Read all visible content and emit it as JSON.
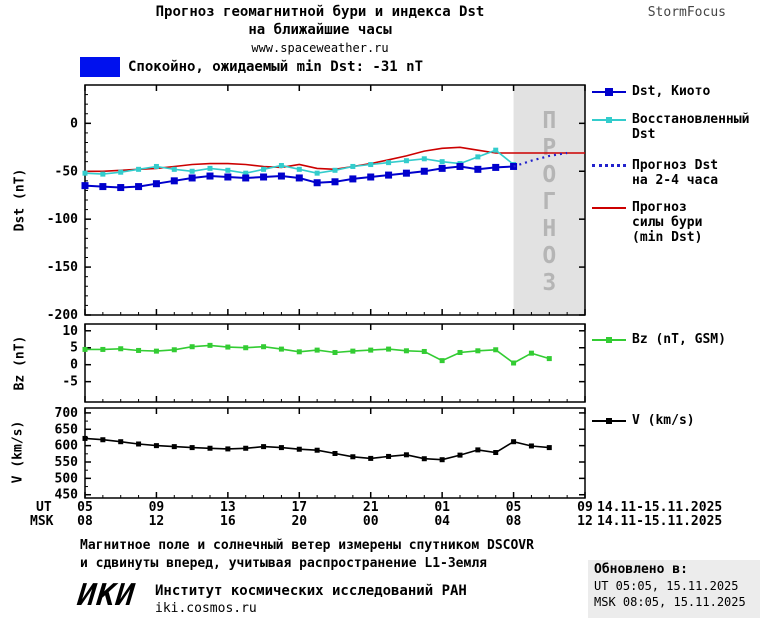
{
  "header": {
    "title_line1": "Прогноз геомагнитной бури и индекса Dst",
    "title_line2": "на ближайшие часы",
    "site": "www.spaceweather.ru",
    "brand": "StormFocus"
  },
  "status": {
    "label": "Спокойно, ожидаемый min Dst: -31 nT",
    "box_color": "#0011ee"
  },
  "axis_labels": {
    "dst": "Dst (nT)",
    "bz": "Bz (nT)",
    "v": "V (km/s)"
  },
  "chart_data": [
    {
      "type": "line",
      "name": "dst",
      "ylabel": "Dst (nT)",
      "xlim": [
        0,
        28
      ],
      "ylim": [
        -200,
        40
      ],
      "yticks": [
        0,
        -50,
        -100,
        -150,
        -200
      ],
      "xticks": [
        0,
        4,
        8,
        12,
        16,
        20,
        24,
        28
      ],
      "forecast_region": [
        24,
        28
      ],
      "forecast_text": "ПРОГНОЗ",
      "series": [
        {
          "name": "Прогноз силы бури (min Dst)",
          "color": "#cc0000",
          "width": 1.6,
          "x_start": 0,
          "values": [
            -50,
            -50,
            -49,
            -48,
            -47,
            -45,
            -43,
            -42,
            -42,
            -43,
            -45,
            -46,
            -43,
            -47,
            -48,
            -45,
            -42,
            -38,
            -34,
            -29,
            -26,
            -25,
            -28,
            -31,
            -31,
            -31,
            -31,
            -31,
            -31
          ]
        },
        {
          "name": "Восстановленный Dst",
          "color": "#33cccc",
          "width": 1.6,
          "marker": 5,
          "x_start": 0,
          "values": [
            -52,
            -53,
            -51,
            -48,
            -45,
            -48,
            -50,
            -47,
            -49,
            -52,
            -48,
            -44,
            -48,
            -52,
            -49,
            -45,
            -43,
            -41,
            -39,
            -37,
            -40,
            -42,
            -35,
            -28,
            -43
          ]
        },
        {
          "name": "Dst, Киото",
          "color": "#0000cc",
          "width": 2,
          "marker": 7,
          "x_start": 0,
          "values": [
            -65,
            -66,
            -67,
            -66,
            -63,
            -60,
            -57,
            -55,
            -56,
            -57,
            -56,
            -55,
            -57,
            -62,
            -61,
            -58,
            -56,
            -54,
            -52,
            -50,
            -47,
            -45,
            -48,
            -46,
            -45
          ]
        },
        {
          "name": "Прогноз Dst на 2-4 часа",
          "color": "#2222cc",
          "width": 2.2,
          "dash": "2 4",
          "x_start": 24,
          "values": [
            -45,
            -39,
            -34,
            -31
          ]
        }
      ]
    },
    {
      "type": "line",
      "name": "bz",
      "ylabel": "Bz (nT)",
      "xlim": [
        0,
        28
      ],
      "ylim": [
        -11,
        12
      ],
      "yticks": [
        10,
        5,
        0,
        -5
      ],
      "xticks": [
        0,
        4,
        8,
        12,
        16,
        20,
        24,
        28
      ],
      "series": [
        {
          "name": "Bz (nT, GSM)",
          "color": "#33cc33",
          "width": 1.6,
          "marker": 5,
          "x_start": 0,
          "values": [
            4.5,
            4.5,
            4.7,
            4.2,
            4.0,
            4.4,
            5.3,
            5.7,
            5.2,
            5.0,
            5.3,
            4.6,
            3.8,
            4.3,
            3.6,
            4.0,
            4.3,
            4.6,
            4.1,
            3.9,
            1.2,
            3.6,
            4.1,
            4.4,
            0.5,
            3.4,
            1.8
          ]
        }
      ]
    },
    {
      "type": "line",
      "name": "v",
      "ylabel": "V (km/s)",
      "xlim": [
        0,
        28
      ],
      "ylim": [
        440,
        715
      ],
      "yticks": [
        700,
        650,
        600,
        550,
        500,
        450
      ],
      "xticks": [
        0,
        4,
        8,
        12,
        16,
        20,
        24,
        28
      ],
      "series": [
        {
          "name": "V (km/s)",
          "color": "#000000",
          "width": 1.6,
          "marker": 5,
          "x_start": 0,
          "values": [
            622,
            618,
            612,
            605,
            600,
            597,
            594,
            592,
            590,
            592,
            597,
            594,
            589,
            586,
            576,
            566,
            561,
            567,
            572,
            560,
            557,
            571,
            587,
            579,
            612,
            599,
            594
          ]
        }
      ]
    }
  ],
  "xaxis": {
    "ut_label": "UT",
    "msk_label": "MSK",
    "ut_ticks": [
      "05",
      "09",
      "13",
      "17",
      "21",
      "01",
      "05",
      "09"
    ],
    "msk_ticks": [
      "08",
      "12",
      "16",
      "20",
      "00",
      "04",
      "08",
      "12"
    ],
    "ut_date": "14.11-15.11.2025",
    "msk_date": "14.11-15.11.2025"
  },
  "legend": {
    "kyoto": {
      "label": "Dst, Киото",
      "color": "#0000cc"
    },
    "restored": {
      "label": "Восстановленный\nDst",
      "color": "#33cccc"
    },
    "forecast_dst": {
      "label": "Прогноз Dst\nна 2-4 часа",
      "color": "#2222cc"
    },
    "forecast_storm": {
      "label": "Прогноз\nсилы бури\n(min Dst)",
      "color": "#cc0000"
    },
    "bz": {
      "label": "Bz (nT, GSM)",
      "color": "#33cc33"
    },
    "v": {
      "label": "V (km/s)",
      "color": "#000000"
    }
  },
  "footer": {
    "note": "Магнитное поле и солнечный ветер измерены спутником DSCOVR\nи сдвинуты вперед, учитывая распространение L1-Земля",
    "updated_title": "Обновлено в:",
    "updated_ut": "UT  05:05, 15.11.2025",
    "updated_msk": "MSK 08:05, 15.11.2025",
    "logo": "ИКИ",
    "institute": "Институт космических исследований РАН",
    "institute_site": "iki.cosmos.ru"
  }
}
